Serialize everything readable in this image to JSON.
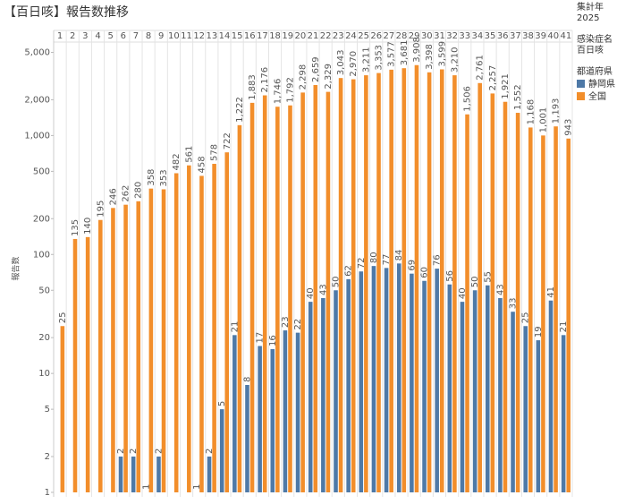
{
  "chart_data": {
    "type": "bar",
    "title": "【百日咳】報告数推移",
    "y_label": "報告数",
    "yscale": "log",
    "grid": false,
    "filters": [
      {
        "label": "集計年",
        "value": "2025"
      },
      {
        "label": "感染症名",
        "value": "百日咳"
      }
    ],
    "legend_title": "都道府県",
    "categories": [
      "1",
      "2",
      "3",
      "4",
      "5",
      "6",
      "7",
      "8",
      "9",
      "10",
      "11",
      "12",
      "13",
      "14",
      "15",
      "16",
      "17",
      "18",
      "19",
      "20",
      "21",
      "22",
      "23",
      "24",
      "25",
      "26",
      "27",
      "28",
      "29",
      "30",
      "31",
      "32",
      "33",
      "34",
      "35",
      "36",
      "37",
      "38",
      "39",
      "40",
      "41"
    ],
    "ylim": [
      1,
      6000
    ],
    "yticks": [
      1,
      2,
      5,
      10,
      20,
      50,
      100,
      200,
      500,
      {
        "value": 1000,
        "label": "1,000"
      },
      {
        "value": 2000,
        "label": "2,000"
      },
      {
        "value": 5000,
        "label": "5,000"
      }
    ],
    "series": [
      {
        "name": "静岡県",
        "color": "#4e79a7",
        "values": [
          null,
          null,
          null,
          null,
          null,
          2,
          2,
          1,
          2,
          null,
          null,
          1,
          2,
          5,
          21,
          8,
          17,
          16,
          23,
          22,
          40,
          43,
          50,
          62,
          72,
          80,
          77,
          84,
          69,
          60,
          76,
          56,
          40,
          50,
          55,
          43,
          33,
          25,
          19,
          41,
          21
        ]
      },
      {
        "name": "全国",
        "color": "#f28e2b",
        "values": [
          25,
          135,
          140,
          195,
          246,
          262,
          280,
          358,
          353,
          482,
          561,
          458,
          578,
          722,
          1222,
          1883,
          2176,
          1746,
          1792,
          2298,
          2659,
          2329,
          3043,
          2970,
          3211,
          3353,
          3577,
          3681,
          3908,
          3398,
          3599,
          3210,
          1506,
          2761,
          2257,
          1921,
          1552,
          1168,
          1001,
          1193,
          943
        ],
        "value_labels": [
          "25",
          "135",
          "140",
          "195",
          "246",
          "262",
          "280",
          "358",
          "353",
          "482",
          "561",
          "458",
          "578",
          "722",
          "1,222",
          "1,883",
          "2,176",
          "1,746",
          "1,792",
          "2,298",
          "2,659",
          "2,329",
          "3,043",
          "2,970",
          "3,211",
          "3,353",
          "3,577",
          "3,681",
          "3,908",
          "3,398",
          "3,599",
          "3,210",
          "1,506",
          "2,761",
          "2,257",
          "1,921",
          "1,552",
          "1,168",
          "1,001",
          "1,193",
          "943"
        ]
      }
    ]
  }
}
